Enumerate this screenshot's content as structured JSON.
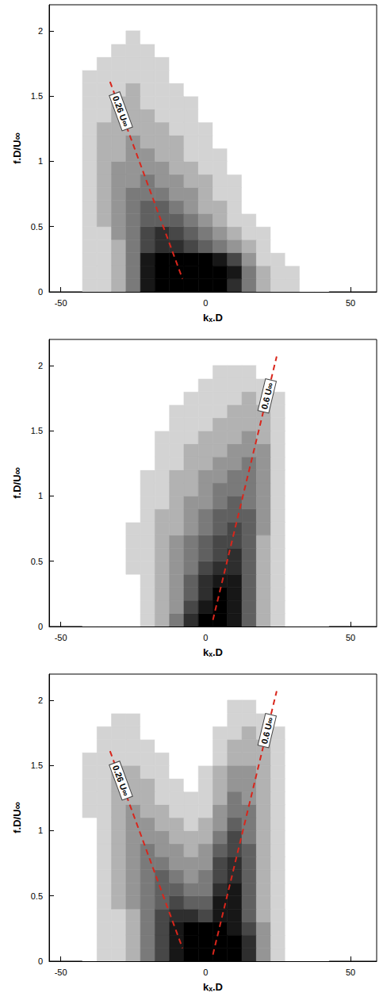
{
  "chart_data": [
    {
      "type": "heatmap",
      "x_label": "kₓ.D",
      "y_label": "f.D/U∞",
      "xlim": [
        -54,
        59
      ],
      "ylim": [
        0,
        2.2
      ],
      "xticks": [
        -50,
        0,
        50
      ],
      "yticks": [
        0,
        0.5,
        1,
        1.5,
        2
      ],
      "grid": false,
      "kx": [
        -40,
        -35,
        -30,
        -25,
        -20,
        -15,
        -10,
        -5,
        0,
        5,
        10,
        15,
        20,
        25,
        30,
        35,
        40
      ],
      "f": [
        0.05,
        0.15,
        0.25,
        0.35,
        0.45,
        0.55,
        0.65,
        0.75,
        0.85,
        0.95,
        1.05,
        1.15,
        1.25,
        1.35,
        1.45,
        1.55,
        1.65,
        1.75,
        1.85,
        1.95
      ],
      "intensity_range": [
        0,
        9
      ],
      "intensity": [
        [
          1,
          1,
          2,
          4,
          8,
          9,
          9,
          9,
          9,
          9,
          7,
          4,
          2,
          1,
          1,
          0,
          0
        ],
        [
          1,
          1,
          2,
          4,
          8,
          9,
          9,
          9,
          9,
          9,
          8,
          4,
          2,
          1,
          1,
          0,
          0
        ],
        [
          1,
          1,
          2,
          4,
          8,
          9,
          9,
          9,
          9,
          8,
          6,
          3,
          1,
          1,
          0,
          0,
          0
        ],
        [
          1,
          1,
          2,
          4,
          6,
          7,
          7,
          6,
          5,
          4,
          3,
          2,
          1,
          0,
          0,
          0,
          0
        ],
        [
          1,
          1,
          3,
          4,
          6,
          7,
          6,
          5,
          4,
          3,
          2,
          1,
          1,
          0,
          0,
          0,
          0
        ],
        [
          1,
          2,
          3,
          4,
          5,
          5,
          5,
          4,
          3,
          2,
          1,
          1,
          0,
          0,
          0,
          0,
          0
        ],
        [
          1,
          2,
          3,
          4,
          5,
          5,
          4,
          3,
          2,
          2,
          1,
          0,
          0,
          0,
          0,
          0,
          0
        ],
        [
          1,
          2,
          3,
          4,
          4,
          4,
          3,
          3,
          2,
          1,
          1,
          0,
          0,
          0,
          0,
          0,
          0
        ],
        [
          1,
          2,
          3,
          3,
          4,
          3,
          3,
          2,
          2,
          1,
          1,
          0,
          0,
          0,
          0,
          0,
          0
        ],
        [
          1,
          2,
          3,
          3,
          3,
          3,
          2,
          2,
          1,
          1,
          0,
          0,
          0,
          0,
          0,
          0,
          0
        ],
        [
          1,
          2,
          2,
          3,
          3,
          2,
          2,
          1,
          1,
          1,
          0,
          0,
          0,
          0,
          0,
          0,
          0
        ],
        [
          1,
          2,
          2,
          3,
          2,
          2,
          2,
          1,
          1,
          0,
          0,
          0,
          0,
          0,
          0,
          0,
          0
        ],
        [
          1,
          2,
          2,
          2,
          2,
          2,
          1,
          1,
          1,
          0,
          0,
          0,
          0,
          0,
          0,
          0,
          0
        ],
        [
          1,
          1,
          2,
          2,
          2,
          1,
          1,
          1,
          0,
          0,
          0,
          0,
          0,
          0,
          0,
          0,
          0
        ],
        [
          1,
          1,
          2,
          2,
          1,
          1,
          1,
          1,
          0,
          0,
          0,
          0,
          0,
          0,
          0,
          0,
          0
        ],
        [
          1,
          1,
          1,
          2,
          1,
          1,
          1,
          0,
          0,
          0,
          0,
          0,
          0,
          0,
          0,
          0,
          0
        ],
        [
          1,
          1,
          1,
          1,
          1,
          1,
          0,
          0,
          0,
          0,
          0,
          0,
          0,
          0,
          0,
          0,
          0
        ],
        [
          0,
          1,
          1,
          1,
          1,
          1,
          0,
          0,
          0,
          0,
          0,
          0,
          0,
          0,
          0,
          0,
          0
        ],
        [
          0,
          0,
          1,
          1,
          1,
          0,
          0,
          0,
          0,
          0,
          0,
          0,
          0,
          0,
          0,
          0,
          0
        ],
        [
          0,
          0,
          0,
          1,
          0,
          0,
          0,
          0,
          0,
          0,
          0,
          0,
          0,
          0,
          0,
          0,
          0
        ]
      ],
      "lines": [
        {
          "label": "0.26 U∞",
          "color": "#d9261c",
          "line_style": "dashed",
          "x": [
            -33,
            -8
          ],
          "y": [
            1.61,
            0.1
          ]
        }
      ]
    },
    {
      "type": "heatmap",
      "x_label": "kₓ.D",
      "y_label": "f.D/U∞",
      "xlim": [
        -54,
        59
      ],
      "ylim": [
        0,
        2.2
      ],
      "xticks": [
        -50,
        0,
        50
      ],
      "yticks": [
        0,
        0.5,
        1,
        1.5,
        2
      ],
      "grid": false,
      "kx": [
        -40,
        -35,
        -30,
        -25,
        -20,
        -15,
        -10,
        -5,
        0,
        5,
        10,
        15,
        20,
        25,
        30,
        35,
        40
      ],
      "f": [
        0.05,
        0.15,
        0.25,
        0.35,
        0.45,
        0.55,
        0.65,
        0.75,
        0.85,
        0.95,
        1.05,
        1.15,
        1.25,
        1.35,
        1.45,
        1.55,
        1.65,
        1.75,
        1.85,
        1.95
      ],
      "intensity_range": [
        0,
        9
      ],
      "intensity": [
        [
          0,
          0,
          0,
          0,
          1,
          2,
          4,
          7,
          9,
          9,
          8,
          5,
          2,
          1,
          0,
          0,
          0
        ],
        [
          0,
          0,
          0,
          0,
          1,
          2,
          3,
          6,
          8,
          9,
          8,
          5,
          2,
          1,
          0,
          0,
          0
        ],
        [
          0,
          0,
          0,
          0,
          1,
          2,
          3,
          5,
          7,
          9,
          8,
          5,
          2,
          1,
          0,
          0,
          0
        ],
        [
          0,
          0,
          0,
          0,
          1,
          2,
          3,
          5,
          7,
          8,
          8,
          5,
          2,
          1,
          0,
          0,
          0
        ],
        [
          0,
          0,
          0,
          1,
          1,
          2,
          3,
          4,
          6,
          7,
          7,
          5,
          2,
          1,
          0,
          0,
          0
        ],
        [
          0,
          0,
          0,
          1,
          1,
          2,
          3,
          4,
          5,
          6,
          7,
          5,
          2,
          1,
          0,
          0,
          0
        ],
        [
          0,
          0,
          0,
          1,
          1,
          2,
          3,
          4,
          5,
          6,
          6,
          5,
          2,
          1,
          0,
          0,
          0
        ],
        [
          0,
          0,
          0,
          1,
          1,
          2,
          2,
          3,
          4,
          5,
          6,
          5,
          3,
          1,
          0,
          0,
          0
        ],
        [
          0,
          0,
          0,
          0,
          1,
          2,
          2,
          3,
          4,
          5,
          5,
          5,
          3,
          1,
          0,
          0,
          0
        ],
        [
          0,
          0,
          0,
          0,
          1,
          1,
          2,
          3,
          3,
          4,
          5,
          4,
          3,
          1,
          0,
          0,
          0
        ],
        [
          0,
          0,
          0,
          0,
          1,
          1,
          2,
          2,
          3,
          4,
          4,
          4,
          3,
          1,
          0,
          0,
          0
        ],
        [
          0,
          0,
          0,
          0,
          1,
          1,
          2,
          2,
          3,
          3,
          4,
          4,
          3,
          1,
          0,
          0,
          0
        ],
        [
          0,
          0,
          0,
          0,
          0,
          1,
          1,
          2,
          2,
          3,
          3,
          4,
          3,
          1,
          0,
          0,
          0
        ],
        [
          0,
          0,
          0,
          0,
          0,
          1,
          1,
          2,
          2,
          2,
          3,
          3,
          3,
          1,
          0,
          0,
          0
        ],
        [
          0,
          0,
          0,
          0,
          0,
          1,
          1,
          1,
          2,
          2,
          2,
          3,
          2,
          1,
          0,
          0,
          0
        ],
        [
          0,
          0,
          0,
          0,
          0,
          0,
          1,
          1,
          1,
          2,
          2,
          2,
          2,
          1,
          0,
          0,
          0
        ],
        [
          0,
          0,
          0,
          0,
          0,
          0,
          1,
          1,
          1,
          1,
          2,
          2,
          2,
          1,
          0,
          0,
          0
        ],
        [
          0,
          0,
          0,
          0,
          0,
          0,
          0,
          1,
          1,
          1,
          1,
          2,
          1,
          1,
          0,
          0,
          0
        ],
        [
          0,
          0,
          0,
          0,
          0,
          0,
          0,
          0,
          1,
          1,
          1,
          1,
          1,
          0,
          0,
          0,
          0
        ],
        [
          0,
          0,
          0,
          0,
          0,
          0,
          0,
          0,
          0,
          1,
          1,
          1,
          0,
          0,
          0,
          0,
          0
        ]
      ],
      "lines": [
        {
          "label": "0.6 U∞",
          "color": "#d9261c",
          "line_style": "dashed",
          "x": [
            2.5,
            24.5
          ],
          "y": [
            0.05,
            2.07
          ]
        }
      ]
    },
    {
      "type": "heatmap",
      "x_label": "kₓ.D",
      "y_label": "f.D/U∞",
      "xlim": [
        -54,
        59
      ],
      "ylim": [
        0,
        2.2
      ],
      "xticks": [
        -50,
        0,
        50
      ],
      "yticks": [
        0,
        0.5,
        1,
        1.5,
        2
      ],
      "grid": false,
      "kx": [
        -40,
        -35,
        -30,
        -25,
        -20,
        -15,
        -10,
        -5,
        0,
        5,
        10,
        15,
        20,
        25,
        30,
        35,
        40
      ],
      "f": [
        0.05,
        0.15,
        0.25,
        0.35,
        0.45,
        0.55,
        0.65,
        0.75,
        0.85,
        0.95,
        1.05,
        1.15,
        1.25,
        1.35,
        1.45,
        1.55,
        1.65,
        1.75,
        1.85,
        1.95
      ],
      "intensity_range": [
        0,
        9
      ],
      "intensity": [
        [
          0,
          1,
          1,
          2,
          4,
          6,
          8,
          9,
          9,
          9,
          9,
          7,
          3,
          1,
          0,
          0,
          0
        ],
        [
          0,
          1,
          1,
          2,
          4,
          6,
          8,
          9,
          9,
          9,
          9,
          7,
          3,
          1,
          0,
          0,
          0
        ],
        [
          0,
          1,
          1,
          2,
          4,
          6,
          8,
          9,
          9,
          9,
          8,
          6,
          3,
          1,
          0,
          0,
          0
        ],
        [
          0,
          1,
          1,
          2,
          4,
          6,
          7,
          7,
          6,
          8,
          8,
          5,
          2,
          1,
          0,
          0,
          0
        ],
        [
          0,
          1,
          2,
          3,
          4,
          5,
          6,
          5,
          5,
          8,
          8,
          5,
          2,
          1,
          0,
          0,
          0
        ],
        [
          0,
          1,
          2,
          3,
          4,
          5,
          5,
          4,
          4,
          7,
          8,
          5,
          2,
          1,
          0,
          0,
          0
        ],
        [
          0,
          1,
          2,
          3,
          4,
          5,
          4,
          3,
          4,
          6,
          7,
          5,
          2,
          1,
          0,
          0,
          0
        ],
        [
          0,
          1,
          2,
          3,
          4,
          4,
          3,
          3,
          3,
          6,
          7,
          5,
          2,
          1,
          0,
          0,
          0
        ],
        [
          0,
          1,
          2,
          3,
          4,
          3,
          3,
          2,
          3,
          5,
          6,
          5,
          2,
          1,
          0,
          0,
          0
        ],
        [
          0,
          1,
          2,
          3,
          3,
          3,
          2,
          2,
          2,
          4,
          6,
          4,
          2,
          1,
          0,
          0,
          0
        ],
        [
          0,
          1,
          2,
          3,
          3,
          2,
          2,
          1,
          2,
          3,
          5,
          4,
          2,
          1,
          0,
          0,
          0
        ],
        [
          1,
          1,
          2,
          3,
          2,
          2,
          1,
          1,
          1,
          3,
          4,
          4,
          2,
          1,
          0,
          0,
          0
        ],
        [
          1,
          1,
          2,
          2,
          2,
          1,
          1,
          1,
          1,
          2,
          4,
          3,
          2,
          1,
          0,
          0,
          0
        ],
        [
          1,
          1,
          2,
          2,
          2,
          1,
          1,
          0,
          1,
          2,
          3,
          3,
          2,
          1,
          0,
          0,
          0
        ],
        [
          1,
          1,
          2,
          2,
          1,
          1,
          0,
          0,
          1,
          2,
          3,
          3,
          2,
          1,
          0,
          0,
          0
        ],
        [
          1,
          1,
          1,
          1,
          1,
          1,
          0,
          0,
          0,
          1,
          2,
          2,
          2,
          1,
          0,
          0,
          0
        ],
        [
          0,
          1,
          1,
          1,
          1,
          0,
          0,
          0,
          0,
          1,
          2,
          2,
          2,
          1,
          0,
          0,
          0
        ],
        [
          0,
          1,
          1,
          1,
          0,
          0,
          0,
          0,
          0,
          1,
          1,
          2,
          1,
          1,
          0,
          0,
          0
        ],
        [
          0,
          0,
          1,
          1,
          0,
          0,
          0,
          0,
          0,
          0,
          1,
          1,
          1,
          0,
          0,
          0,
          0
        ],
        [
          0,
          0,
          0,
          0,
          0,
          0,
          0,
          0,
          0,
          0,
          1,
          1,
          0,
          0,
          0,
          0,
          0
        ]
      ],
      "lines": [
        {
          "label": "0.26 U∞",
          "color": "#d9261c",
          "line_style": "dashed",
          "x": [
            -33,
            -8
          ],
          "y": [
            1.61,
            0.1
          ]
        },
        {
          "label": "0.6 U∞",
          "color": "#d9261c",
          "line_style": "dashed",
          "x": [
            2.5,
            24.5
          ],
          "y": [
            0.05,
            2.07
          ]
        }
      ]
    }
  ]
}
